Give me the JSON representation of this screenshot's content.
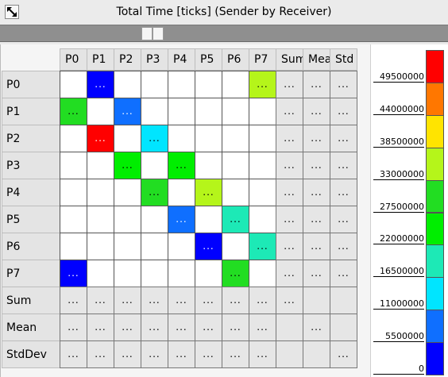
{
  "window": {
    "title": "Total Time [ticks] (Sender by Receiver)"
  },
  "columns": [
    "P0",
    "P1",
    "P2",
    "P3",
    "P4",
    "P5",
    "P6",
    "P7",
    "Sum",
    "Mean",
    "Std"
  ],
  "rows": [
    "P0",
    "P1",
    "P2",
    "P3",
    "P4",
    "P5",
    "P6",
    "P7",
    "Sum",
    "Mean",
    "StdDev"
  ],
  "cell_placeholder": "...",
  "colors": {
    "c0": "#0000ff",
    "c1": "#0f6fff",
    "c2": "#00e5ff",
    "c3": "#1de9b6",
    "c4": "#00ee00",
    "c5": "#22dd22",
    "c6": "#b5f51a",
    "c7": "#ffe400",
    "c8": "#ff7700",
    "c9": "#ff0000",
    "empty": "#ffffff",
    "stat": "#e6e6e6"
  },
  "matrix": [
    [
      "empty",
      "c0 ...",
      "empty",
      "empty",
      "empty",
      "empty",
      "empty",
      "c6 ...",
      "stat ...",
      "stat ...",
      "stat ..."
    ],
    [
      "c5 ...",
      "empty",
      "c1 ...",
      "empty",
      "empty",
      "empty",
      "empty",
      "empty",
      "stat ...",
      "stat ...",
      "stat ..."
    ],
    [
      "empty",
      "c9 ...",
      "empty",
      "c2 ...",
      "empty",
      "empty",
      "empty",
      "empty",
      "stat ...",
      "stat ...",
      "stat ..."
    ],
    [
      "empty",
      "empty",
      "c4 ...",
      "empty",
      "c4 ...",
      "empty",
      "empty",
      "empty",
      "stat ...",
      "stat ...",
      "stat ..."
    ],
    [
      "empty",
      "empty",
      "empty",
      "c5 ...",
      "empty",
      "c6 ...",
      "empty",
      "empty",
      "stat ...",
      "stat ...",
      "stat ..."
    ],
    [
      "empty",
      "empty",
      "empty",
      "empty",
      "c1 ...",
      "empty",
      "c3 ...",
      "empty",
      "stat ...",
      "stat ...",
      "stat ..."
    ],
    [
      "empty",
      "empty",
      "empty",
      "empty",
      "empty",
      "c0 ...",
      "empty",
      "c3 ...",
      "stat ...",
      "stat ...",
      "stat ..."
    ],
    [
      "c0 ...",
      "empty",
      "empty",
      "empty",
      "empty",
      "empty",
      "c5 ...",
      "empty",
      "stat ...",
      "stat ...",
      "stat ..."
    ],
    [
      "stat ...",
      "stat ...",
      "stat ...",
      "stat ...",
      "stat ...",
      "stat ...",
      "stat ...",
      "stat ...",
      "stat ...",
      "stat",
      "stat"
    ],
    [
      "stat ...",
      "stat ...",
      "stat ...",
      "stat ...",
      "stat ...",
      "stat ...",
      "stat ...",
      "stat ...",
      "stat",
      "stat ...",
      "stat"
    ],
    [
      "stat ...",
      "stat ...",
      "stat ...",
      "stat ...",
      "stat ...",
      "stat ...",
      "stat ...",
      "stat ...",
      "stat",
      "stat",
      "stat ..."
    ]
  ],
  "legend": {
    "swatches_top_to_bottom": [
      "c9",
      "c8",
      "c7",
      "c6",
      "c5",
      "c4",
      "c3",
      "c2",
      "c1",
      "c0"
    ],
    "ticks": [
      "49500000",
      "44000000",
      "38500000",
      "33000000",
      "27500000",
      "22000000",
      "16500000",
      "11000000",
      "5500000",
      "0"
    ]
  }
}
